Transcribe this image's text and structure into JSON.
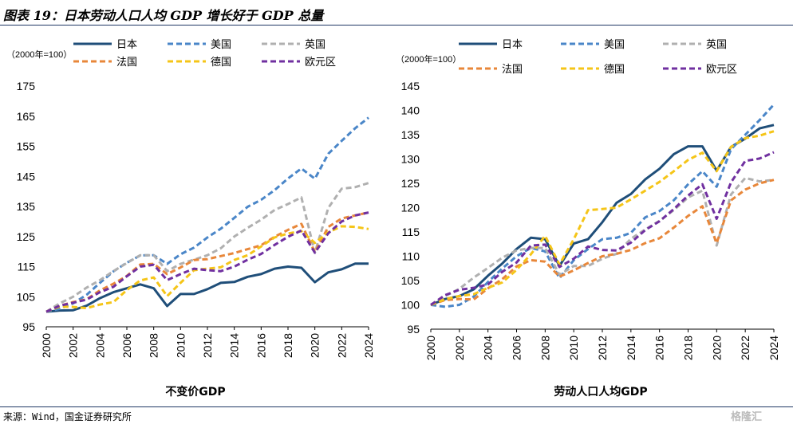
{
  "figure_title": "图表 19：日本劳动人口人均 GDP 增长好于 GDP 总量",
  "source": "来源：Wind，国金证券研究所",
  "watermark": "格隆汇",
  "colors": {
    "日本": "#1f4e79",
    "美国": "#4a86c8",
    "英国": "#b0b0b0",
    "法国": "#e8873a",
    "德国": "#f5c518",
    "欧元区": "#7030a0",
    "rule": "#1f3864"
  },
  "chart_data": [
    {
      "type": "line",
      "title": "不变价GDP",
      "unit_label": "（2000年=100）",
      "ylim": [
        95,
        175
      ],
      "yticks": [
        95,
        105,
        115,
        125,
        135,
        145,
        155,
        165,
        175
      ],
      "xlim": [
        2000,
        2024
      ],
      "xticks": [
        "2000",
        "2002",
        "2004",
        "2006",
        "2008",
        "2010",
        "2012",
        "2014",
        "2016",
        "2018",
        "2020",
        "2022",
        "2024"
      ],
      "x": [
        2000,
        2001,
        2002,
        2003,
        2004,
        2005,
        2006,
        2007,
        2008,
        2009,
        2010,
        2011,
        2012,
        2013,
        2014,
        2015,
        2016,
        2017,
        2018,
        2019,
        2020,
        2021,
        2022,
        2023,
        2024
      ],
      "series": [
        {
          "name": "日本",
          "style": "solid",
          "values": [
            100,
            100.4,
            100.5,
            102,
            104.5,
            106.5,
            107.8,
            109.1,
            107.8,
            101.9,
            105.9,
            105.9,
            107.5,
            109.6,
            109.9,
            111.6,
            112.5,
            114.3,
            115,
            114.6,
            109.8,
            113.1,
            114.1,
            116,
            116
          ]
        },
        {
          "name": "美国",
          "style": "dashed",
          "values": [
            100,
            101,
            102.8,
            105.6,
            109.6,
            113.4,
            116.3,
            118.7,
            118.8,
            115.9,
            119.1,
            121.3,
            124.7,
            127.6,
            131.2,
            134.9,
            137.2,
            140.4,
            144.3,
            147.6,
            144.2,
            152.5,
            156.8,
            161,
            164.5
          ]
        },
        {
          "name": "英国",
          "style": "dashed",
          "values": [
            100,
            102.8,
            105,
            108,
            110.5,
            113.5,
            116.2,
            118.8,
            118.8,
            113.5,
            115.9,
            117.3,
            118.8,
            121.1,
            125,
            127.9,
            130.6,
            133.8,
            135.8,
            138,
            119.6,
            134.5,
            140.9,
            141.4,
            142.8
          ]
        },
        {
          "name": "法国",
          "style": "dashed",
          "values": [
            100,
            102,
            103.2,
            104.1,
            107.1,
            109.3,
            111.9,
            115.7,
            115.9,
            112.5,
            114.7,
            117.2,
            117.5,
            118.5,
            119.5,
            120.8,
            122.1,
            124.9,
            127.2,
            129.2,
            119.8,
            128.2,
            131,
            132,
            133
          ]
        },
        {
          "name": "德国",
          "style": "dashed",
          "values": [
            100,
            101.7,
            101.6,
            101.2,
            102.4,
            103.2,
            107.2,
            110.4,
            111.4,
            105.2,
            109.6,
            113.8,
            114.3,
            114.8,
            117.2,
            118.8,
            121.7,
            124.7,
            126,
            126.8,
            122.9,
            126.4,
            128.4,
            128.2,
            127.5
          ]
        },
        {
          "name": "欧元区",
          "style": "dashed",
          "values": [
            100,
            102,
            103,
            104,
            106.5,
            108.3,
            111.8,
            115,
            115.6,
            110.5,
            112.5,
            114.3,
            113.8,
            113.5,
            115,
            117.3,
            119.2,
            122.2,
            124.9,
            127,
            119.6,
            126.1,
            130,
            132,
            133
          ]
        }
      ]
    },
    {
      "type": "line",
      "title": "劳动人口人均GDP",
      "unit_label": "（2000年=100）",
      "ylim": [
        95,
        145
      ],
      "yticks": [
        95,
        100,
        105,
        110,
        115,
        120,
        125,
        130,
        135,
        140,
        145
      ],
      "xlim": [
        2000,
        2024
      ],
      "xticks": [
        "2000",
        "2002",
        "2004",
        "2006",
        "2008",
        "2010",
        "2012",
        "2014",
        "2016",
        "2018",
        "2020",
        "2022",
        "2024"
      ],
      "x": [
        2000,
        2001,
        2002,
        2003,
        2004,
        2005,
        2006,
        2007,
        2008,
        2009,
        2010,
        2011,
        2012,
        2013,
        2014,
        2015,
        2016,
        2017,
        2018,
        2019,
        2020,
        2021,
        2022,
        2023,
        2024
      ],
      "series": [
        {
          "name": "日本",
          "style": "solid",
          "values": [
            100,
            101.2,
            101.8,
            103.2,
            106,
            108.5,
            111.5,
            113.8,
            113.5,
            108,
            112.6,
            113.5,
            117,
            121,
            122.8,
            125.8,
            128,
            131,
            132.6,
            132.6,
            127.6,
            132.5,
            134.2,
            136.3,
            137
          ]
        },
        {
          "name": "美国",
          "style": "dashed",
          "values": [
            100,
            99.6,
            100,
            101.7,
            104.7,
            107.5,
            110,
            111.7,
            111,
            105.5,
            109.2,
            111.5,
            113.5,
            113.8,
            114.8,
            118,
            119.3,
            121.5,
            124.8,
            127.5,
            124.3,
            132,
            135,
            138,
            141.2
          ]
        },
        {
          "name": "英国",
          "style": "dashed",
          "values": [
            100,
            101.8,
            103.3,
            105.6,
            107.6,
            109.7,
            111.2,
            111.7,
            111.7,
            106.2,
            108,
            108,
            109.5,
            110.5,
            113.6,
            115.5,
            117.3,
            119.5,
            122.1,
            123.5,
            112.2,
            122.7,
            126.1,
            125.4,
            125.7
          ]
        },
        {
          "name": "法国",
          "style": "dashed",
          "values": [
            100,
            101,
            101.2,
            101.1,
            103.4,
            105.3,
            107.9,
            109.2,
            108.9,
            105.8,
            107.1,
            108.6,
            110,
            110.5,
            111.3,
            112.7,
            113.7,
            115.9,
            118.3,
            120.3,
            112.7,
            121.5,
            123.7,
            125,
            125.7
          ]
        },
        {
          "name": "德国",
          "style": "dashed",
          "values": [
            100,
            101.2,
            101.8,
            102.2,
            103.5,
            104.6,
            107.2,
            110.4,
            114.2,
            108.3,
            113.5,
            119.5,
            119.7,
            120,
            121.7,
            123.5,
            125.3,
            127.5,
            129.8,
            131.3,
            127.5,
            132.5,
            134.3,
            134.8,
            135.7
          ]
        },
        {
          "name": "欧元区",
          "style": "dashed",
          "values": [
            100,
            102,
            103.1,
            103.5,
            104.2,
            106.8,
            108.7,
            112.2,
            112.4,
            107.8,
            109.5,
            112,
            111.3,
            111.2,
            112.8,
            115.4,
            117.2,
            119.7,
            122.5,
            124.8,
            117.7,
            125.2,
            129.6,
            130.1,
            131.4
          ]
        }
      ]
    }
  ]
}
